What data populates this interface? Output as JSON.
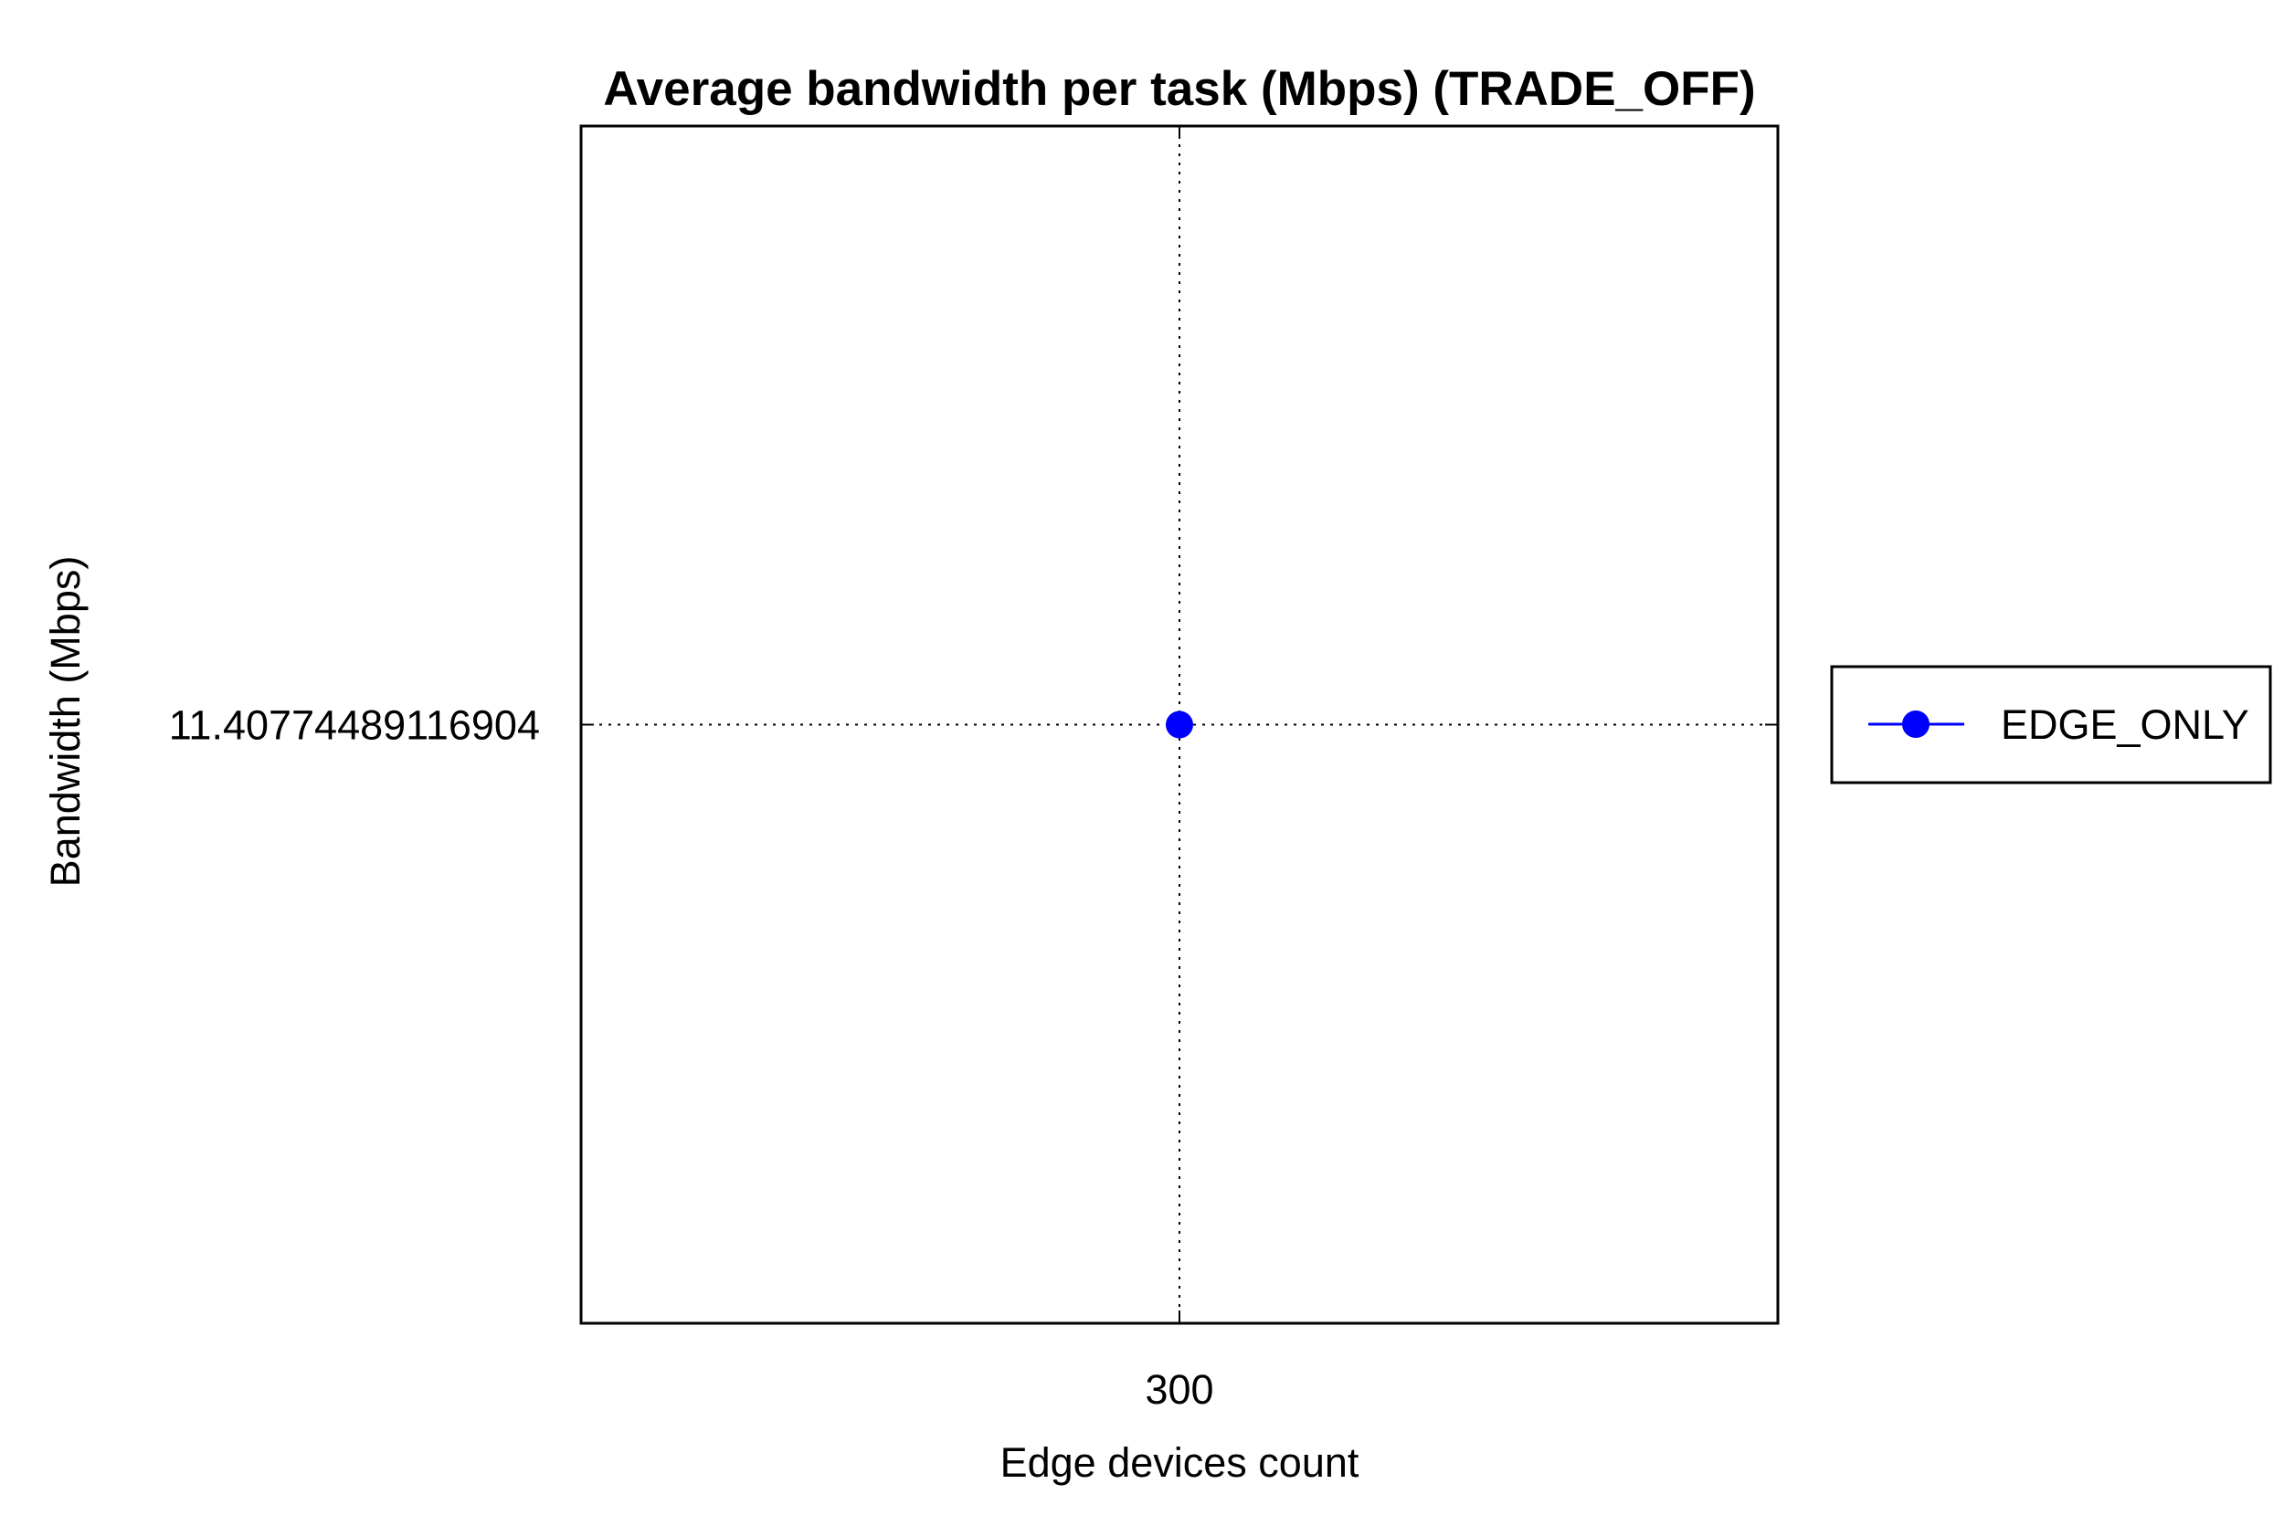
{
  "chart_data": {
    "type": "line",
    "title": "Average bandwidth per task (Mbps) (TRADE_OFF)",
    "xlabel": "Edge devices count",
    "ylabel": "Bandwidth (Mbps)",
    "x_ticks": [
      "300"
    ],
    "y_ticks": [
      "11.40774489116904"
    ],
    "xlim": [
      250,
      350
    ],
    "ylim": [
      10.40774489116904,
      12.40774489116904
    ],
    "grid": true,
    "legend_position": "outside-right",
    "series": [
      {
        "name": "EDGE_ONLY",
        "color": "#0000ff",
        "marker": "circle",
        "x": [
          300
        ],
        "y": [
          11.40774489116904
        ]
      }
    ]
  }
}
